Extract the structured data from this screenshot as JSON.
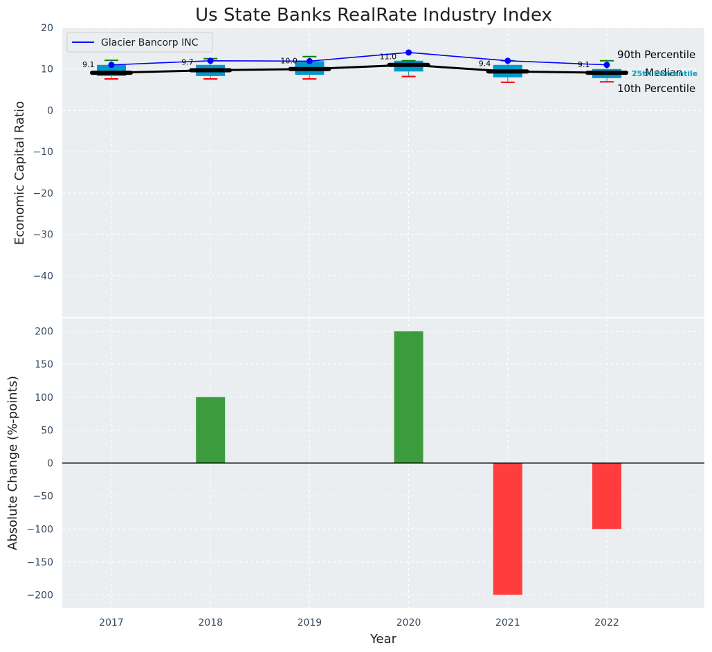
{
  "chart_data": [
    {
      "type": "line",
      "title": "Us State Banks RealRate Industry Index",
      "xlabel": "",
      "ylabel": "Economic Capital Ratio",
      "ylim": [
        -50,
        20
      ],
      "yticks": [
        20,
        10,
        0,
        -10,
        -20,
        -30,
        -40
      ],
      "categories": [
        "2017",
        "2018",
        "2019",
        "2020",
        "2021",
        "2022"
      ],
      "series": [
        {
          "name": "Glacier Bancorp INC",
          "color": "#0000ff",
          "values": [
            11.0,
            12.0,
            11.9,
            14.0,
            12.0,
            11.0
          ]
        },
        {
          "name": "Median",
          "color": "#000000",
          "values": [
            9.1,
            9.7,
            10.0,
            11.0,
            9.4,
            9.1
          ]
        }
      ],
      "box": {
        "p10": [
          7.6,
          7.6,
          7.6,
          8.2,
          6.8,
          6.9
        ],
        "p25": [
          8.3,
          8.3,
          8.6,
          9.4,
          8.0,
          7.8
        ],
        "p75": [
          11.0,
          11.0,
          11.9,
          12.0,
          11.0,
          10.0
        ],
        "p90": [
          12.1,
          12.5,
          13.0,
          12.0,
          12.0,
          12.0
        ]
      },
      "median_labels": [
        "9.1",
        "9.7",
        "10.0",
        "11.0",
        "9.4",
        "9.1"
      ],
      "annotations": {
        "p90": "90th Percentile",
        "median": "Median",
        "p10": "10th Percentile",
        "p25": "25th Percentile",
        "p75": "75th Percentile"
      },
      "legend": "top-left"
    },
    {
      "type": "bar",
      "xlabel": "Year",
      "ylabel": "Absolute Change (%-points)",
      "ylim": [
        -220,
        220
      ],
      "yticks": [
        200,
        150,
        100,
        50,
        0,
        -50,
        -100,
        -150,
        -200
      ],
      "categories": [
        "2017",
        "2018",
        "2019",
        "2020",
        "2021",
        "2022"
      ],
      "values": [
        0,
        100,
        0,
        200,
        -200,
        -100
      ],
      "positive_color": "#3c9b3c",
      "negative_color": "#ff3d3d"
    }
  ],
  "colors": {
    "panel_bg": "#eaeef0",
    "box_fill": "#0099cc",
    "p90_whisker": "#008000",
    "p10_whisker": "#ff0000"
  }
}
